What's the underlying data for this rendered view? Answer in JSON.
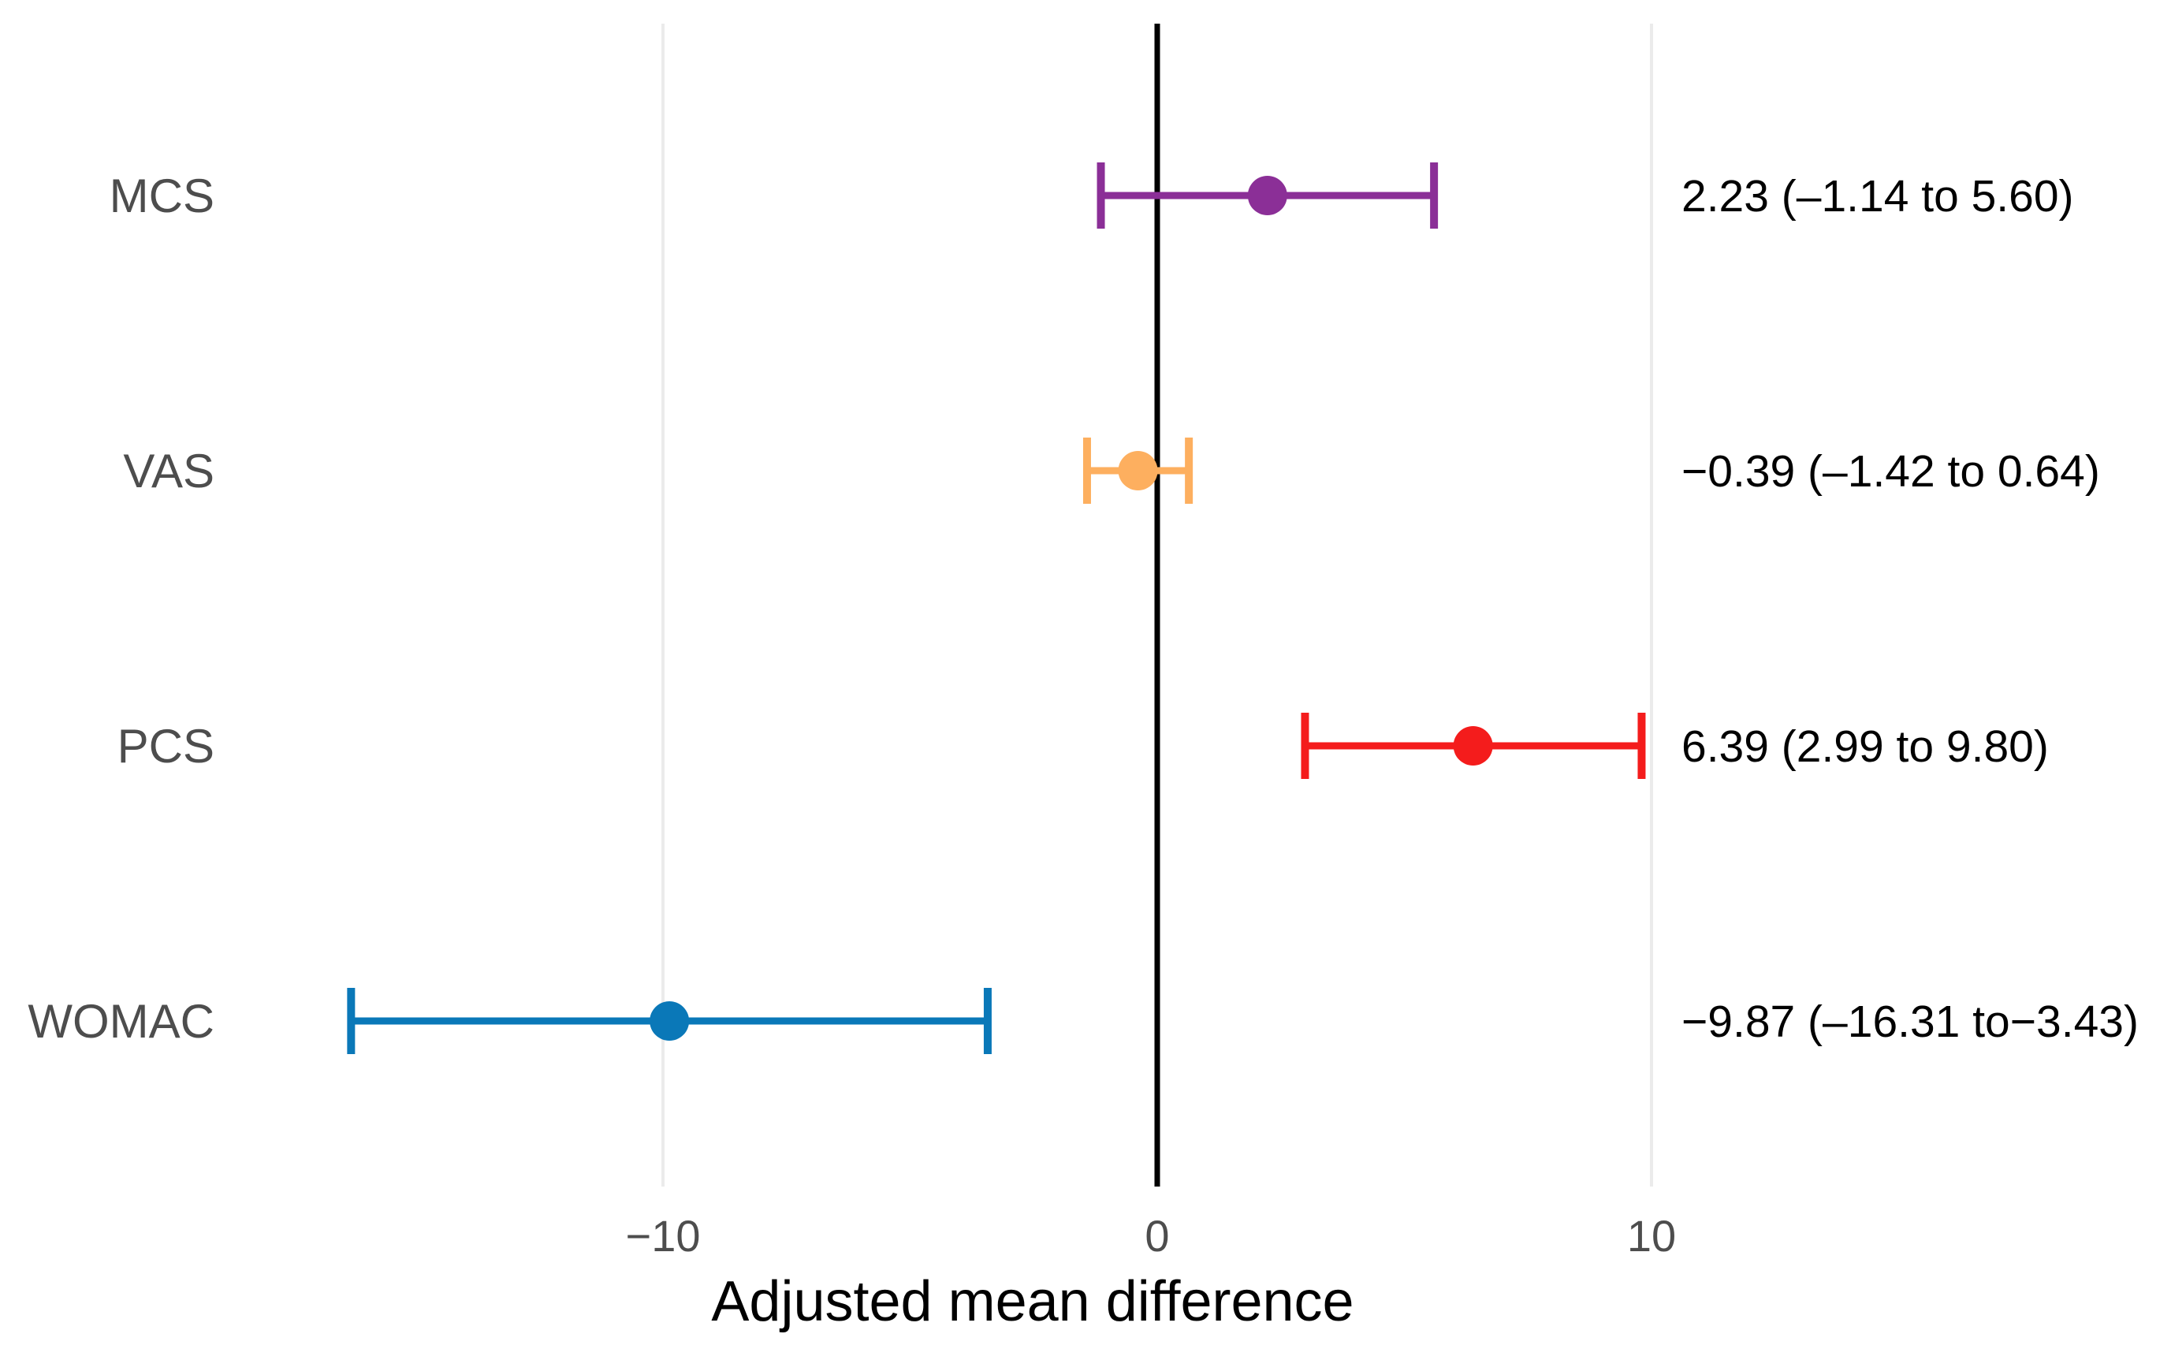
{
  "chart_data": {
    "type": "forest",
    "xlabel": "Adjusted mean difference",
    "xlim": [
      -16.7,
      10.2
    ],
    "xticks": [
      {
        "value": -10,
        "label": "−10"
      },
      {
        "value": 0,
        "label": "0"
      },
      {
        "value": 10,
        "label": "10"
      }
    ],
    "grid": "vertical major gridlines",
    "reference_line": 0,
    "rows": [
      {
        "label": "MCS",
        "estimate": 2.23,
        "lower": -1.14,
        "upper": 5.6,
        "text": "2.23 (–1.14 to 5.60)",
        "color": "#8b2f97"
      },
      {
        "label": "VAS",
        "estimate": -0.39,
        "lower": -1.42,
        "upper": 0.64,
        "text": "−0.39 (–1.42 to 0.64)",
        "color": "#fdaf5f"
      },
      {
        "label": "PCS",
        "estimate": 6.39,
        "lower": 2.99,
        "upper": 9.8,
        "text": "6.39 (2.99 to 9.80)",
        "color": "#f41c1c"
      },
      {
        "label": "WOMAC",
        "estimate": -9.87,
        "lower": -16.31,
        "upper": -3.43,
        "text": "−9.87 (–16.31 to−3.43)",
        "color": "#0a78b8"
      }
    ]
  }
}
